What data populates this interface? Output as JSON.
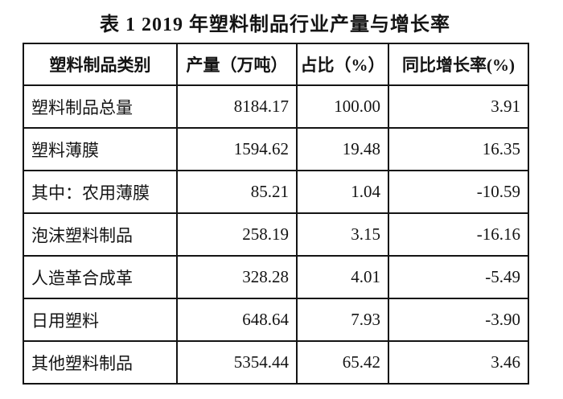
{
  "title": "表 1  2019 年塑料制品行业产量与增长率",
  "table": {
    "headers": [
      "塑料制品类别",
      "产量（万吨）",
      "占比（%）",
      "同比增长率(%)"
    ],
    "rows": [
      {
        "category": "塑料制品总量",
        "output": "8184.17",
        "share": "100.00",
        "growth": "3.91"
      },
      {
        "category": "塑料薄膜",
        "output": "1594.62",
        "share": "19.48",
        "growth": "16.35"
      },
      {
        "category": "其中：农用薄膜",
        "output": "85.21",
        "share": "1.04",
        "growth": "-10.59"
      },
      {
        "category": "泡沫塑料制品",
        "output": "258.19",
        "share": "3.15",
        "growth": "-16.16"
      },
      {
        "category": "人造革合成革",
        "output": "328.28",
        "share": "4.01",
        "growth": "-5.49"
      },
      {
        "category": "日用塑料",
        "output": "648.64",
        "share": "7.93",
        "growth": "-3.90"
      },
      {
        "category": "其他塑料制品",
        "output": "5354.44",
        "share": "65.42",
        "growth": "3.46"
      }
    ]
  },
  "chart_data": {
    "type": "table",
    "title": "表 1  2019 年塑料制品行业产量与增长率",
    "columns": [
      "塑料制品类别",
      "产量（万吨）",
      "占比（%）",
      "同比增长率(%)"
    ],
    "rows": [
      [
        "塑料制品总量",
        8184.17,
        100.0,
        3.91
      ],
      [
        "塑料薄膜",
        1594.62,
        19.48,
        16.35
      ],
      [
        "其中：农用薄膜",
        85.21,
        1.04,
        -10.59
      ],
      [
        "泡沫塑料制品",
        258.19,
        3.15,
        -16.16
      ],
      [
        "人造革合成革",
        328.28,
        4.01,
        -5.49
      ],
      [
        "日用塑料",
        648.64,
        7.93,
        -3.9
      ],
      [
        "其他塑料制品",
        5354.44,
        65.42,
        3.46
      ]
    ]
  },
  "colors": {
    "background": "#ffffff",
    "border": "#141414",
    "text": "#141414"
  }
}
